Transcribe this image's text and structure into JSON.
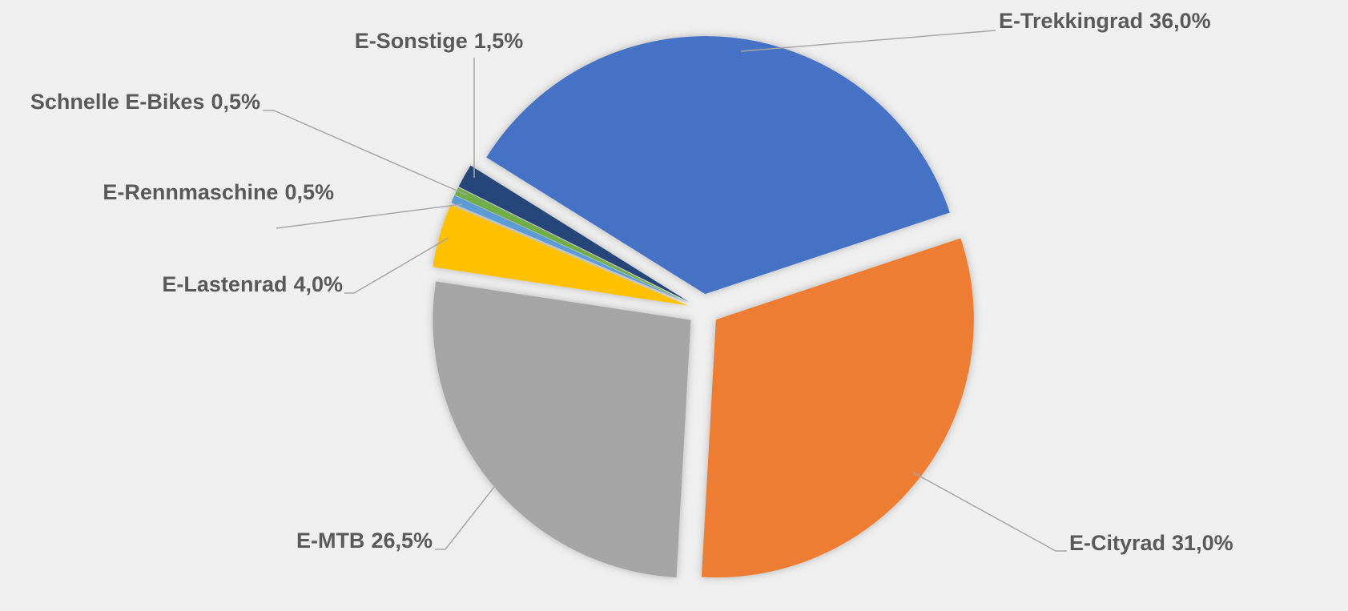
{
  "chart_data": {
    "type": "pie",
    "categories": [
      "E-Trekkingrad",
      "E-Cityrad",
      "E-MTB",
      "E-Lastenrad",
      "E-Rennmaschine",
      "Schnelle E-Bikes",
      "E-Sonstige"
    ],
    "values": [
      36.0,
      31.0,
      26.5,
      4.0,
      0.5,
      0.5,
      1.5
    ],
    "value_labels": [
      "36,0%",
      "31,0%",
      "26,5%",
      "4,0%",
      "0,5%",
      "0,5%",
      "1,5%"
    ],
    "colors": [
      "#4472c4",
      "#ed7d31",
      "#a5a5a5",
      "#ffc000",
      "#5b9bd5",
      "#70ad47",
      "#264478"
    ]
  }
}
